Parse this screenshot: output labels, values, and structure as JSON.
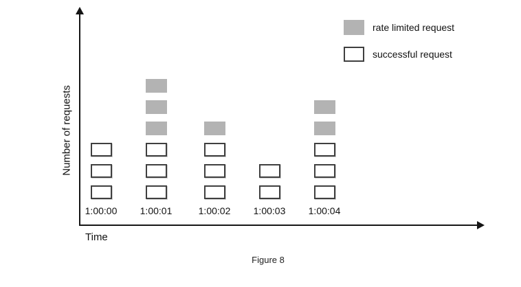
{
  "figure": {
    "caption": "Figure 8"
  },
  "axes": {
    "x_label": "Time",
    "y_label": "Number of requests"
  },
  "legend": {
    "position": "top-right",
    "items": [
      {
        "label": "rate limited request",
        "swatch": "rate-limited"
      },
      {
        "label": "successful request",
        "swatch": "successful"
      }
    ]
  },
  "colors": {
    "rate_limited_fill": "#b3b3b3",
    "successful_fill": "#ffffff",
    "box_border": "#3f3f3f",
    "axis": "#151515"
  },
  "chart_data": {
    "type": "bar",
    "subtype": "stacked-unit-boxes",
    "title": "",
    "xlabel": "Time",
    "ylabel": "Number of requests",
    "categories": [
      "1:00:00",
      "1:00:01",
      "1:00:02",
      "1:00:03",
      "1:00:04"
    ],
    "series": [
      {
        "name": "successful request",
        "values": [
          3,
          3,
          3,
          2,
          3
        ]
      },
      {
        "name": "rate limited request",
        "values": [
          0,
          3,
          1,
          0,
          2
        ]
      }
    ],
    "totals_per_category": [
      3,
      6,
      4,
      2,
      5
    ],
    "y_ticks": [],
    "grid": false,
    "legend_position": "top-right",
    "caption": "Figure 8"
  }
}
